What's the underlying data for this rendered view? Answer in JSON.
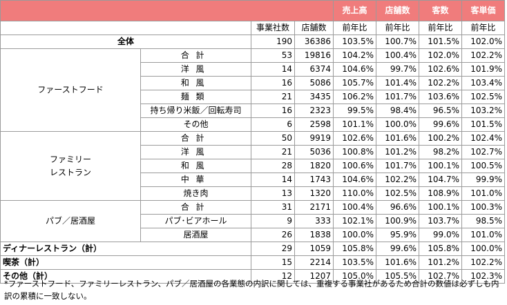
{
  "header": {
    "metrics": [
      "売上高",
      "店舗数",
      "客数",
      "客単価"
    ],
    "cols": [
      "事業社数",
      "店舗数",
      "前年比",
      "前年比",
      "前年比",
      "前年比"
    ]
  },
  "rows": [
    {
      "cat": "全体",
      "sub": "",
      "v": [
        "190",
        "36386",
        "103.5%",
        "100.7%",
        "101.5%",
        "102.0%"
      ]
    },
    {
      "cat": "ファーストフード",
      "sub": "合計",
      "v": [
        "53",
        "19816",
        "104.2%",
        "100.4%",
        "102.0%",
        "102.2%"
      ]
    },
    {
      "sub": "洋風",
      "v": [
        "14",
        "6374",
        "104.6%",
        "99.7%",
        "102.6%",
        "101.9%"
      ]
    },
    {
      "sub": "和風",
      "v": [
        "16",
        "5086",
        "105.7%",
        "101.4%",
        "102.2%",
        "103.4%"
      ]
    },
    {
      "sub": "麺類",
      "v": [
        "21",
        "3435",
        "106.2%",
        "101.7%",
        "103.6%",
        "102.5%"
      ]
    },
    {
      "sub": "持ち帰り米飯／回転寿司",
      "v": [
        "16",
        "2323",
        "99.5%",
        "98.4%",
        "96.5%",
        "103.2%"
      ]
    },
    {
      "sub": "その他",
      "v": [
        "6",
        "2598",
        "101.1%",
        "100.0%",
        "99.6%",
        "101.5%"
      ]
    },
    {
      "cat_line1": "ファミリー",
      "cat_line2": "レストラン",
      "sub": "合計",
      "v": [
        "50",
        "9919",
        "102.6%",
        "101.6%",
        "100.2%",
        "102.4%"
      ]
    },
    {
      "sub": "洋風",
      "v": [
        "21",
        "5036",
        "100.8%",
        "101.2%",
        "98.2%",
        "102.7%"
      ]
    },
    {
      "sub": "和風",
      "v": [
        "28",
        "1820",
        "100.6%",
        "101.7%",
        "100.1%",
        "100.5%"
      ]
    },
    {
      "sub": "中華",
      "v": [
        "14",
        "1743",
        "104.6%",
        "102.2%",
        "104.7%",
        "99.9%"
      ]
    },
    {
      "sub": "焼き肉",
      "v": [
        "13",
        "1320",
        "110.0%",
        "102.5%",
        "108.9%",
        "101.0%"
      ]
    },
    {
      "cat": "パブ／居酒屋",
      "sub": "合計",
      "v": [
        "31",
        "2171",
        "100.4%",
        "96.6%",
        "100.1%",
        "100.3%"
      ]
    },
    {
      "sub": "パブ･ビアホール",
      "v": [
        "9",
        "333",
        "102.1%",
        "100.9%",
        "103.7%",
        "98.5%"
      ]
    },
    {
      "sub": "居酒屋",
      "v": [
        "26",
        "1838",
        "100.0%",
        "95.9%",
        "99.0%",
        "101.0%"
      ]
    },
    {
      "cat": "ディナーレストラン（計）",
      "v": [
        "29",
        "1059",
        "105.8%",
        "99.6%",
        "105.8%",
        "100.0%"
      ]
    },
    {
      "cat": "喫茶（計）",
      "v": [
        "15",
        "2214",
        "103.5%",
        "101.6%",
        "101.2%",
        "102.2%"
      ]
    },
    {
      "cat": "その他（計）",
      "v": [
        "12",
        "1207",
        "105.0%",
        "105.5%",
        "102.7%",
        "102.3%"
      ]
    }
  ],
  "note": "*ファーストフード、ファミリーレストラン、パブ／居酒屋の各業態の内訳に関しては、重複する事業社があるため合計の数値は必ずしも内訳の累積に一致しない。",
  "colors": {
    "header_accent": "#f07c7c",
    "grid": "#9a9a9a"
  }
}
